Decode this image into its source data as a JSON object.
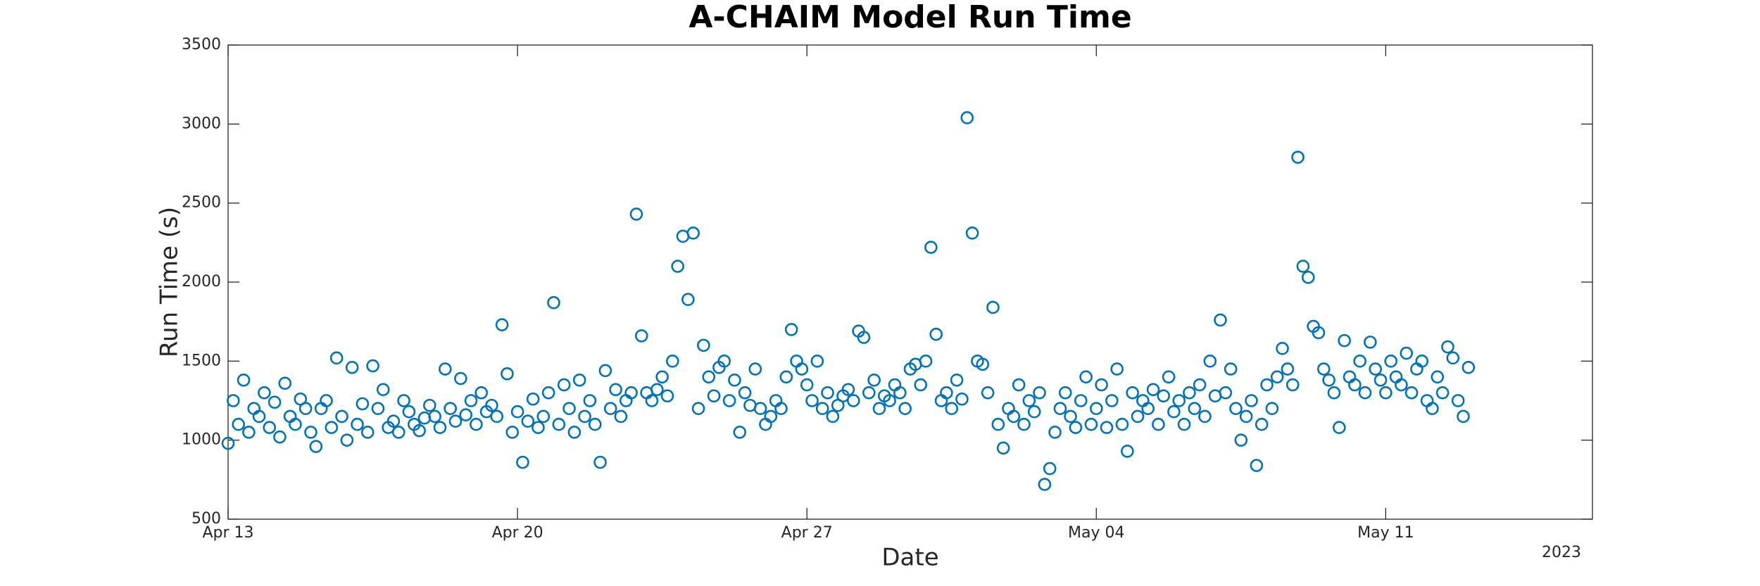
{
  "chart_data": {
    "type": "scatter",
    "title": "A-CHAIM Model Run Time",
    "xlabel": "Date",
    "ylabel": "Run Time (s)",
    "x_year_label": "2023",
    "color": "#0072bd",
    "xlim": [
      0,
      33
    ],
    "ylim": [
      500,
      3500
    ],
    "xticks": [
      {
        "value": 0,
        "label": "Apr 13"
      },
      {
        "value": 7,
        "label": "Apr 20"
      },
      {
        "value": 14,
        "label": "Apr 27"
      },
      {
        "value": 21,
        "label": "May 04"
      },
      {
        "value": 28,
        "label": "May 11"
      }
    ],
    "yticks": [
      500,
      1000,
      1500,
      2000,
      2500,
      3000,
      3500
    ],
    "x": [
      0,
      0.125,
      0.25,
      0.375,
      0.5,
      0.625,
      0.75,
      0.875,
      1,
      1.125,
      1.25,
      1.375,
      1.5,
      1.625,
      1.75,
      1.875,
      2,
      2.125,
      2.25,
      2.375,
      2.5,
      2.625,
      2.75,
      2.875,
      3,
      3.125,
      3.25,
      3.375,
      3.5,
      3.625,
      3.75,
      3.875,
      4,
      4.125,
      4.25,
      4.375,
      4.5,
      4.625,
      4.75,
      4.875,
      5,
      5.125,
      5.25,
      5.375,
      5.5,
      5.625,
      5.75,
      5.875,
      6,
      6.125,
      6.25,
      6.375,
      6.5,
      6.625,
      6.75,
      6.875,
      7,
      7.125,
      7.25,
      7.375,
      7.5,
      7.625,
      7.75,
      7.875,
      8,
      8.125,
      8.25,
      8.375,
      8.5,
      8.625,
      8.75,
      8.875,
      9,
      9.125,
      9.25,
      9.375,
      9.5,
      9.625,
      9.75,
      9.875,
      10,
      10.125,
      10.25,
      10.375,
      10.5,
      10.625,
      10.75,
      10.875,
      11,
      11.125,
      11.25,
      11.375,
      11.5,
      11.625,
      11.75,
      11.875,
      12,
      12.125,
      12.25,
      12.375,
      12.5,
      12.625,
      12.75,
      12.875,
      13,
      13.125,
      13.25,
      13.375,
      13.5,
      13.625,
      13.75,
      13.875,
      14,
      14.125,
      14.25,
      14.375,
      14.5,
      14.625,
      14.75,
      14.875,
      15,
      15.125,
      15.25,
      15.375,
      15.5,
      15.625,
      15.75,
      15.875,
      16,
      16.125,
      16.25,
      16.375,
      16.5,
      16.625,
      16.75,
      16.875,
      17,
      17.125,
      17.25,
      17.375,
      17.5,
      17.625,
      17.75,
      17.875,
      18,
      18.125,
      18.25,
      18.375,
      18.5,
      18.625,
      18.75,
      18.875,
      19,
      19.125,
      19.25,
      19.375,
      19.5,
      19.625,
      19.75,
      19.875,
      20,
      20.125,
      20.25,
      20.375,
      20.5,
      20.625,
      20.75,
      20.875,
      21,
      21.125,
      21.25,
      21.375,
      21.5,
      21.625,
      21.75,
      21.875,
      22,
      22.125,
      22.25,
      22.375,
      22.5,
      22.625,
      22.75,
      22.875,
      23,
      23.125,
      23.25,
      23.375,
      23.5,
      23.625,
      23.75,
      23.875,
      24,
      24.125,
      24.25,
      24.375,
      24.5,
      24.625,
      24.75,
      24.875,
      25,
      25.125,
      25.25,
      25.375,
      25.5,
      25.625,
      25.75,
      25.875,
      26,
      26.125,
      26.25,
      26.375,
      26.5,
      26.625,
      26.75,
      26.875,
      27,
      27.125,
      27.25,
      27.375,
      27.5,
      27.625,
      27.75,
      27.875,
      28,
      28.125,
      28.25,
      28.375,
      28.5,
      28.625,
      28.75,
      28.875,
      29,
      29.125,
      29.25,
      29.375,
      29.5,
      29.625,
      29.75,
      29.875,
      30
    ],
    "values": [
      980,
      1250,
      1100,
      1380,
      1050,
      1200,
      1150,
      1300,
      1080,
      1240,
      1020,
      1360,
      1150,
      1100,
      1260,
      1200,
      1050,
      960,
      1200,
      1250,
      1080,
      1520,
      1150,
      1000,
      1460,
      1100,
      1230,
      1050,
      1470,
      1200,
      1320,
      1080,
      1120,
      1050,
      1250,
      1180,
      1100,
      1060,
      1140,
      1220,
      1150,
      1080,
      1450,
      1200,
      1120,
      1390,
      1160,
      1250,
      1100,
      1300,
      1180,
      1220,
      1150,
      1730,
      1420,
      1050,
      1180,
      860,
      1120,
      1260,
      1080,
      1150,
      1300,
      1870,
      1100,
      1350,
      1200,
      1050,
      1380,
      1150,
      1250,
      1100,
      860,
      1440,
      1200,
      1320,
      1150,
      1250,
      1300,
      2430,
      1660,
      1300,
      1250,
      1320,
      1400,
      1280,
      1500,
      2100,
      2290,
      1890,
      2310,
      1200,
      1600,
      1400,
      1280,
      1460,
      1500,
      1250,
      1380,
      1050,
      1300,
      1220,
      1450,
      1200,
      1100,
      1150,
      1250,
      1200,
      1400,
      1700,
      1500,
      1450,
      1350,
      1250,
      1500,
      1200,
      1300,
      1150,
      1220,
      1280,
      1320,
      1250,
      1690,
      1650,
      1300,
      1380,
      1200,
      1280,
      1250,
      1350,
      1300,
      1200,
      1450,
      1480,
      1350,
      1500,
      2220,
      1670,
      1250,
      1300,
      1200,
      1380,
      1260,
      3040,
      2310,
      1500,
      1480,
      1300,
      1840,
      1100,
      950,
      1200,
      1150,
      1350,
      1100,
      1250,
      1180,
      1300,
      720,
      820,
      1050,
      1200,
      1300,
      1150,
      1080,
      1250,
      1400,
      1100,
      1200,
      1350,
      1080,
      1250,
      1450,
      1100,
      930,
      1300,
      1150,
      1250,
      1200,
      1320,
      1100,
      1280,
      1400,
      1180,
      1250,
      1100,
      1300,
      1200,
      1350,
      1150,
      1500,
      1280,
      1760,
      1300,
      1450,
      1200,
      1000,
      1150,
      1250,
      840,
      1100,
      1350,
      1200,
      1400,
      1580,
      1450,
      1350,
      2790,
      2100,
      2030,
      1720,
      1680,
      1450,
      1380,
      1300,
      1080,
      1630,
      1400,
      1350,
      1500,
      1300,
      1620,
      1450,
      1380,
      1300,
      1500,
      1400,
      1350,
      1550,
      1300,
      1450,
      1500,
      1250,
      1200,
      1400,
      1300,
      1590,
      1520,
      1250,
      1150,
      1460
    ]
  }
}
